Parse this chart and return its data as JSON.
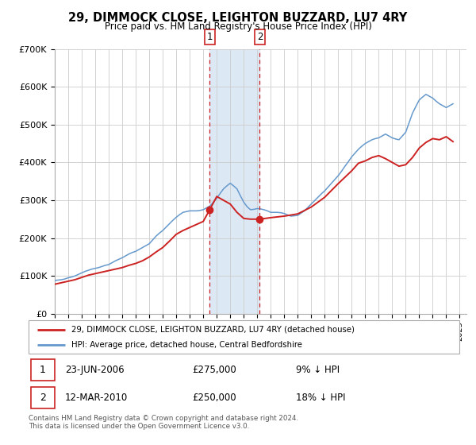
{
  "title": "29, DIMMOCK CLOSE, LEIGHTON BUZZARD, LU7 4RY",
  "subtitle": "Price paid vs. HM Land Registry's House Price Index (HPI)",
  "background_color": "#ffffff",
  "plot_background": "#ffffff",
  "grid_color": "#cccccc",
  "hpi_line_color": "#6699cc",
  "price_line_color": "#cc2222",
  "marker_color": "#cc2222",
  "shade_color": "#dde8f5",
  "vline_color": "#cc2222",
  "ylim": [
    0,
    700000
  ],
  "yticks": [
    0,
    100000,
    200000,
    300000,
    400000,
    500000,
    600000,
    700000
  ],
  "ytick_labels": [
    "£0",
    "£100K",
    "£200K",
    "£300K",
    "£400K",
    "£500K",
    "£600K",
    "£700K"
  ],
  "xmin": 1995.0,
  "xmax": 2025.5,
  "event1_x": 2006.48,
  "event2_x": 2010.19,
  "event1_price": 275000,
  "event2_price": 250000,
  "legend_line1": "29, DIMMOCK CLOSE, LEIGHTON BUZZARD, LU7 4RY (detached house)",
  "legend_line2": "HPI: Average price, detached house, Central Bedfordshire",
  "table_row1": [
    "1",
    "23-JUN-2006",
    "£275,000",
    "9% ↓ HPI"
  ],
  "table_row2": [
    "2",
    "12-MAR-2010",
    "£250,000",
    "18% ↓ HPI"
  ],
  "footer": "Contains HM Land Registry data © Crown copyright and database right 2024.\nThis data is licensed under the Open Government Licence v3.0.",
  "hpi_data": {
    "years": [
      1995.0,
      1995.25,
      1995.5,
      1995.75,
      1996.0,
      1996.25,
      1996.5,
      1996.75,
      1997.0,
      1997.25,
      1997.5,
      1997.75,
      1998.0,
      1998.25,
      1998.5,
      1998.75,
      1999.0,
      1999.25,
      1999.5,
      1999.75,
      2000.0,
      2000.25,
      2000.5,
      2000.75,
      2001.0,
      2001.25,
      2001.5,
      2001.75,
      2002.0,
      2002.25,
      2002.5,
      2002.75,
      2003.0,
      2003.25,
      2003.5,
      2003.75,
      2004.0,
      2004.25,
      2004.5,
      2004.75,
      2005.0,
      2005.25,
      2005.5,
      2005.75,
      2006.0,
      2006.25,
      2006.5,
      2006.75,
      2007.0,
      2007.25,
      2007.5,
      2007.75,
      2008.0,
      2008.25,
      2008.5,
      2008.75,
      2009.0,
      2009.25,
      2009.5,
      2009.75,
      2010.0,
      2010.25,
      2010.5,
      2010.75,
      2011.0,
      2011.25,
      2011.5,
      2011.75,
      2012.0,
      2012.25,
      2012.5,
      2012.75,
      2013.0,
      2013.25,
      2013.5,
      2013.75,
      2014.0,
      2014.25,
      2014.5,
      2014.75,
      2015.0,
      2015.25,
      2015.5,
      2015.75,
      2016.0,
      2016.25,
      2016.5,
      2016.75,
      2017.0,
      2017.25,
      2017.5,
      2017.75,
      2018.0,
      2018.25,
      2018.5,
      2018.75,
      2019.0,
      2019.25,
      2019.5,
      2019.75,
      2020.0,
      2020.25,
      2020.5,
      2020.75,
      2021.0,
      2021.25,
      2021.5,
      2021.75,
      2022.0,
      2022.25,
      2022.5,
      2022.75,
      2023.0,
      2023.25,
      2023.5,
      2023.75,
      2024.0,
      2024.25,
      2024.5
    ],
    "values": [
      88000,
      89000,
      90000,
      92000,
      95000,
      97000,
      100000,
      104000,
      108000,
      112000,
      115000,
      118000,
      120000,
      122000,
      125000,
      128000,
      130000,
      135000,
      140000,
      144000,
      148000,
      153000,
      158000,
      162000,
      165000,
      170000,
      175000,
      180000,
      185000,
      195000,
      205000,
      213000,
      220000,
      229000,
      238000,
      247000,
      255000,
      262000,
      268000,
      270000,
      272000,
      272000,
      272000,
      273000,
      275000,
      280000,
      285000,
      295000,
      305000,
      318000,
      330000,
      338000,
      345000,
      338000,
      330000,
      312000,
      295000,
      283000,
      275000,
      276000,
      278000,
      277000,
      275000,
      272000,
      268000,
      268000,
      268000,
      267000,
      265000,
      261000,
      258000,
      259000,
      260000,
      266000,
      272000,
      281000,
      290000,
      299000,
      308000,
      317000,
      325000,
      335000,
      345000,
      355000,
      365000,
      377000,
      390000,
      402000,
      415000,
      425000,
      435000,
      443000,
      450000,
      455000,
      460000,
      463000,
      465000,
      470000,
      475000,
      470000,
      465000,
      462000,
      460000,
      470000,
      480000,
      505000,
      530000,
      548000,
      565000,
      573000,
      580000,
      575000,
      570000,
      562000,
      555000,
      550000,
      545000,
      550000,
      555000
    ]
  },
  "price_data": {
    "years": [
      1995.0,
      1995.5,
      1996.0,
      1996.5,
      1997.0,
      1997.5,
      1998.0,
      1998.5,
      1999.0,
      1999.5,
      2000.0,
      2000.5,
      2001.0,
      2001.5,
      2002.0,
      2002.5,
      2003.0,
      2003.5,
      2004.0,
      2004.5,
      2005.0,
      2005.5,
      2006.0,
      2006.48,
      2007.0,
      2007.5,
      2008.0,
      2008.5,
      2009.0,
      2009.5,
      2010.19,
      2011.0,
      2012.0,
      2013.0,
      2014.0,
      2015.0,
      2016.0,
      2017.0,
      2017.5,
      2018.0,
      2018.5,
      2019.0,
      2019.5,
      2020.0,
      2020.5,
      2021.0,
      2021.5,
      2022.0,
      2022.5,
      2023.0,
      2023.5,
      2024.0,
      2024.5
    ],
    "values": [
      78000,
      82000,
      86000,
      90000,
      96000,
      102000,
      106000,
      110000,
      114000,
      118000,
      122000,
      128000,
      133000,
      140000,
      150000,
      163000,
      175000,
      192000,
      210000,
      220000,
      228000,
      236000,
      244000,
      275000,
      310000,
      300000,
      290000,
      268000,
      252000,
      250000,
      250000,
      254000,
      258000,
      264000,
      282000,
      308000,
      344000,
      378000,
      398000,
      404000,
      413000,
      418000,
      410000,
      400000,
      390000,
      394000,
      413000,
      438000,
      453000,
      463000,
      460000,
      468000,
      455000
    ]
  }
}
